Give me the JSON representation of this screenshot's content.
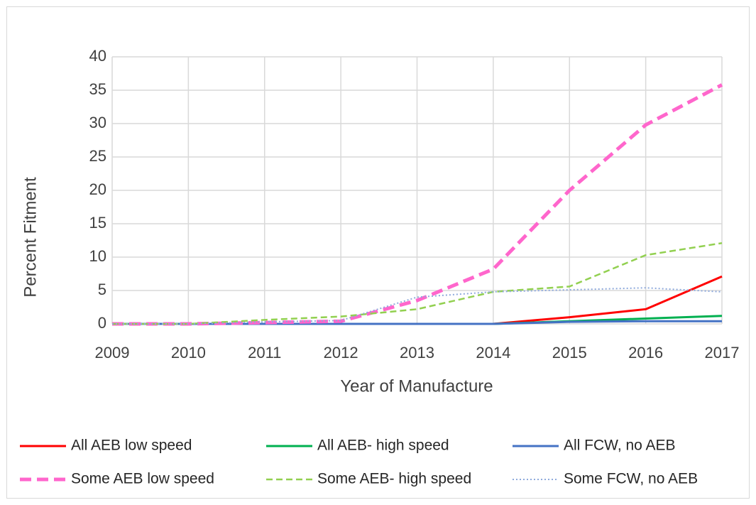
{
  "chart_data": {
    "type": "line",
    "x": [
      2009,
      2010,
      2011,
      2012,
      2013,
      2014,
      2015,
      2016,
      2017
    ],
    "xlim": [
      2009,
      2017
    ],
    "xticks": [
      2009,
      2010,
      2011,
      2012,
      2013,
      2014,
      2015,
      2016,
      2017
    ],
    "ylim": [
      0,
      40
    ],
    "yticks": [
      0,
      5,
      10,
      15,
      20,
      25,
      30,
      35,
      40
    ],
    "xlabel": "Year of Manufacture",
    "ylabel": "Percent Fitment",
    "grid": true,
    "legend": "bottom",
    "series": [
      {
        "name": "All AEB low speed",
        "color": "#ff0000",
        "style": "solid",
        "values": [
          0,
          0,
          0,
          0,
          0,
          0,
          1,
          2.2,
          7.1
        ]
      },
      {
        "name": "All AEB- high speed",
        "color": "#00b050",
        "style": "solid",
        "values": [
          0,
          0,
          0,
          0,
          0,
          0,
          0.4,
          0.8,
          1.2
        ]
      },
      {
        "name": "All FCW, no AEB",
        "color": "#4472c4",
        "style": "solid",
        "values": [
          0,
          0,
          0,
          0,
          0,
          0,
          0.3,
          0.4,
          0.4
        ]
      },
      {
        "name": "Some AEB low speed",
        "color": "#ff66cc",
        "style": "dashed",
        "values": [
          0,
          0,
          0.2,
          0.4,
          3.5,
          8.2,
          20,
          29.8,
          35.8
        ]
      },
      {
        "name": "Some AEB- high speed",
        "color": "#92d050",
        "style": "dashed-thin",
        "values": [
          0,
          0,
          0.6,
          1.1,
          2.2,
          4.8,
          5.6,
          10.3,
          12.1
        ]
      },
      {
        "name": "Some FCW, no AEB",
        "color": "#8faadc",
        "style": "dotted",
        "values": [
          0,
          0,
          0.3,
          0.5,
          4,
          4.8,
          5.1,
          5.4,
          4.8
        ]
      }
    ]
  }
}
